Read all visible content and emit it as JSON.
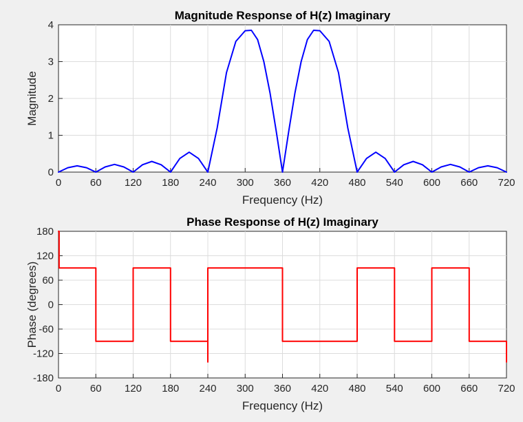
{
  "chart_data": [
    {
      "type": "line",
      "title": "Magnitude Response of H(z) Imaginary",
      "xlabel": "Frequency (Hz)",
      "ylabel": "Magnitude",
      "xlim": [
        0,
        720
      ],
      "ylim": [
        0,
        4
      ],
      "xticks": [
        0,
        60,
        120,
        180,
        240,
        300,
        360,
        420,
        480,
        540,
        600,
        660,
        720
      ],
      "xtick_labels": [
        "0",
        "60",
        "120",
        "180",
        "240",
        "300",
        "360",
        "420",
        "480",
        "540",
        "600",
        "660",
        "720"
      ],
      "yticks": [
        0,
        1,
        2,
        3,
        4
      ],
      "ytick_labels": [
        "0",
        "1",
        "2",
        "3",
        "4"
      ],
      "grid": true,
      "color": "#0000ff",
      "series": [
        {
          "x": [
            0,
            15,
            30,
            45,
            60,
            75,
            90,
            105,
            120,
            135,
            150,
            165,
            180,
            195,
            210,
            225,
            240,
            255,
            270,
            285,
            300,
            310,
            320,
            330,
            340,
            350,
            360,
            370,
            380,
            390,
            400,
            410,
            420,
            435,
            450,
            465,
            480,
            495,
            510,
            525,
            540,
            555,
            570,
            585,
            600,
            615,
            630,
            645,
            660,
            675,
            690,
            705,
            720
          ],
          "y": [
            0,
            0.12,
            0.17,
            0.12,
            0,
            0.14,
            0.21,
            0.14,
            0,
            0.2,
            0.29,
            0.2,
            0,
            0.37,
            0.54,
            0.37,
            0,
            1.2,
            2.7,
            3.55,
            3.84,
            3.85,
            3.6,
            3.0,
            2.15,
            1.1,
            0,
            1.1,
            2.15,
            3.0,
            3.6,
            3.85,
            3.84,
            3.55,
            2.7,
            1.2,
            0,
            0.37,
            0.54,
            0.37,
            0,
            0.2,
            0.29,
            0.2,
            0,
            0.14,
            0.21,
            0.14,
            0,
            0.12,
            0.17,
            0.12,
            0
          ]
        }
      ]
    },
    {
      "type": "line",
      "title": "Phase Response of H(z) Imaginary",
      "xlabel": "Frequency (Hz)",
      "ylabel": "Phase (degrees)",
      "xlim": [
        0,
        720
      ],
      "ylim": [
        -180,
        180
      ],
      "xticks": [
        0,
        60,
        120,
        180,
        240,
        300,
        360,
        420,
        480,
        540,
        600,
        660,
        720
      ],
      "xtick_labels": [
        "0",
        "60",
        "120",
        "180",
        "240",
        "300",
        "360",
        "420",
        "480",
        "540",
        "600",
        "660",
        "720"
      ],
      "yticks": [
        -180,
        -120,
        -60,
        0,
        60,
        120,
        180
      ],
      "ytick_labels": [
        "-180",
        "-120",
        "-60",
        "0",
        "60",
        "120",
        "180"
      ],
      "grid": true,
      "color": "#ff0000",
      "series": [
        {
          "x": [
            0,
            1,
            1,
            60,
            60,
            120,
            120,
            180,
            180,
            240,
            240,
            240,
            240,
            360,
            360,
            480,
            480,
            540,
            540,
            600,
            600,
            660,
            660,
            720,
            720
          ],
          "y": [
            180,
            180,
            90,
            90,
            -90,
            -90,
            90,
            90,
            -90,
            -90,
            -141,
            -90,
            90,
            90,
            -90,
            -90,
            90,
            90,
            -90,
            -90,
            90,
            90,
            -90,
            -90,
            -141
          ]
        }
      ]
    }
  ]
}
